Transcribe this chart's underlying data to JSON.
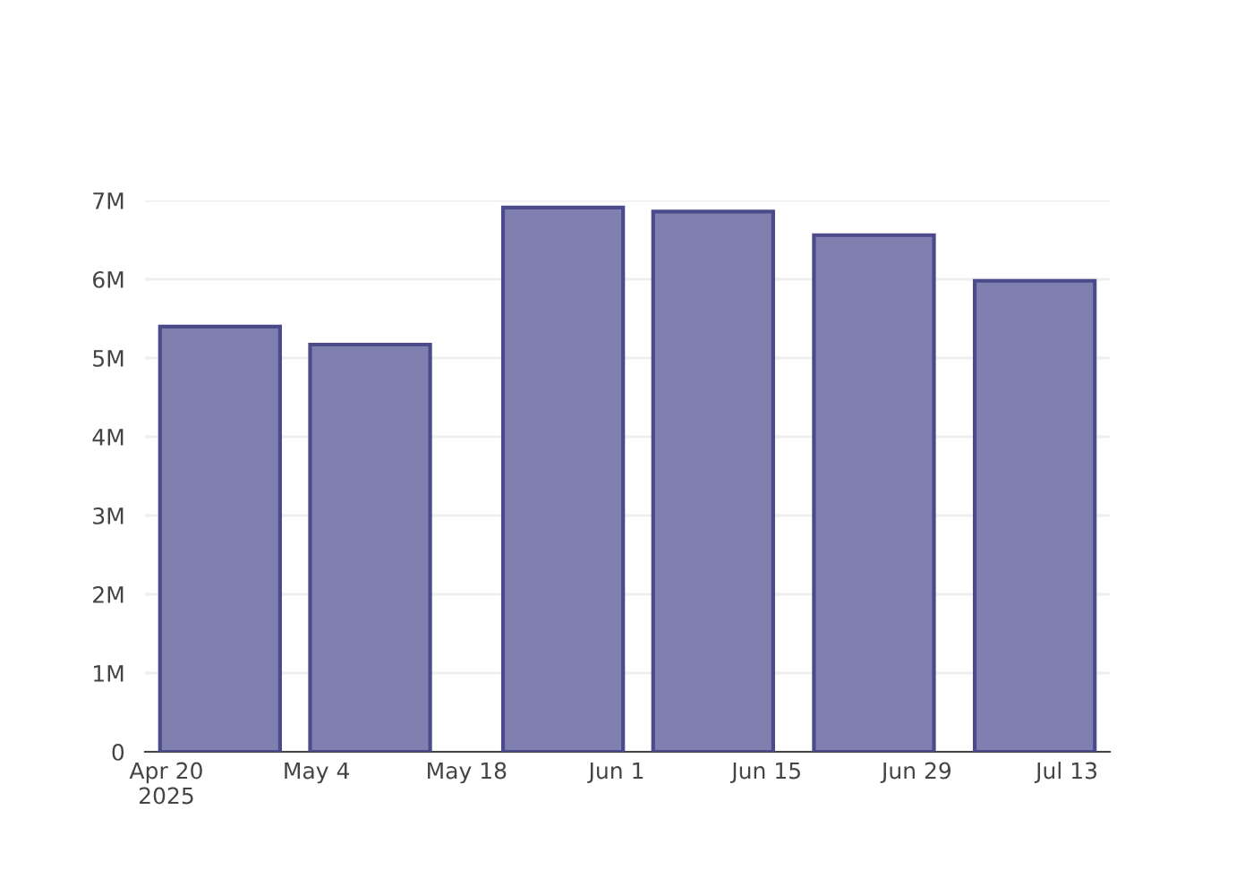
{
  "chart_data": {
    "type": "bar",
    "x": [
      "2025-04-25",
      "2025-05-09",
      "2025-05-27",
      "2025-06-10",
      "2025-06-25",
      "2025-07-10"
    ],
    "values": [
      5.4,
      5.17,
      6.91,
      6.86,
      6.56,
      5.98
    ],
    "color": "#7f7fb0",
    "xlim": [
      "2025-04-18",
      "2025-07-17"
    ],
    "xticks": [
      {
        "value": "2025-04-20",
        "label": "Apr 20\n2025"
      },
      {
        "value": "2025-05-04",
        "label": "May 4"
      },
      {
        "value": "2025-05-18",
        "label": "May 18"
      },
      {
        "value": "2025-06-01",
        "label": "Jun 1"
      },
      {
        "value": "2025-06-15",
        "label": "Jun 15"
      },
      {
        "value": "2025-06-29",
        "label": "Jun 29"
      },
      {
        "value": "2025-07-13",
        "label": "Jul 13"
      }
    ],
    "ylim": [
      0,
      7
    ],
    "yticks": [
      {
        "value": 0,
        "label": "0"
      },
      {
        "value": 1,
        "label": "1M"
      },
      {
        "value": 2,
        "label": "2M"
      },
      {
        "value": 3,
        "label": "3M"
      },
      {
        "value": 4,
        "label": "4M"
      },
      {
        "value": 5,
        "label": "5M"
      },
      {
        "value": 6,
        "label": "6M"
      },
      {
        "value": 7,
        "label": "7M"
      }
    ],
    "grid": "y"
  }
}
